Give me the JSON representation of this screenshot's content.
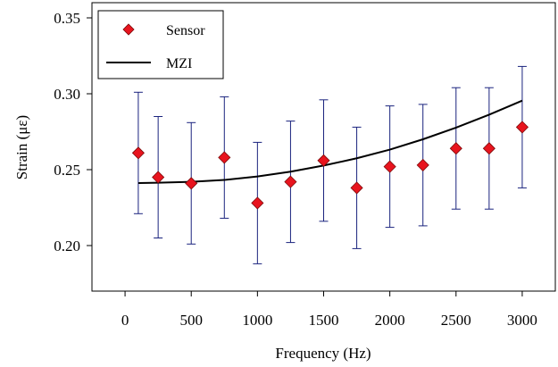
{
  "chart_data": {
    "type": "scatter",
    "xlabel": "Frequency (Hz)",
    "ylabel": "Strain (με)",
    "xlim": [
      -250,
      3250
    ],
    "ylim": [
      0.17,
      0.36
    ],
    "x_ticks": [
      0,
      500,
      1000,
      1500,
      2000,
      2500,
      3000
    ],
    "x_tick_labels": [
      "0",
      "500",
      "1000",
      "1500",
      "2000",
      "2500",
      "3000"
    ],
    "y_ticks": [
      0.2,
      0.25,
      0.3,
      0.35
    ],
    "y_tick_labels": [
      "0.20",
      "0.25",
      "0.30",
      "0.35"
    ],
    "grid": false,
    "legend_position": "top-left",
    "legend": [
      "Sensor",
      "MZI"
    ],
    "series": [
      {
        "name": "Sensor",
        "kind": "markers-with-error-bars",
        "marker": "diamond",
        "color": "#e8141e",
        "error_bar_color": "#1a237e",
        "x": [
          100,
          250,
          500,
          750,
          1000,
          1250,
          1500,
          1750,
          2000,
          2250,
          2500,
          2750,
          3000
        ],
        "y": [
          0.261,
          0.245,
          0.241,
          0.258,
          0.228,
          0.242,
          0.256,
          0.238,
          0.252,
          0.253,
          0.264,
          0.264,
          0.278
        ],
        "error": 0.04
      },
      {
        "name": "MZI",
        "kind": "line",
        "color": "#000000",
        "x": [
          100,
          250,
          500,
          750,
          1000,
          1250,
          1500,
          1750,
          2000,
          2250,
          2500,
          2750,
          3000
        ],
        "y": [
          0.2412,
          0.2414,
          0.242,
          0.2432,
          0.2455,
          0.2487,
          0.2527,
          0.2575,
          0.2632,
          0.27,
          0.2777,
          0.2862,
          0.2955
        ]
      }
    ]
  }
}
